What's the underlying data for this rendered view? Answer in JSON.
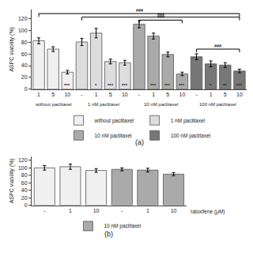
{
  "chart_data": [
    {
      "type": "bar",
      "title": "(a)",
      "ylabel": "ASPC viability (%)",
      "categories": [
        "1",
        "5",
        "10",
        "-",
        "1",
        "5",
        "10",
        "-",
        "1",
        "5",
        "10",
        "-",
        "1",
        "5",
        "10"
      ],
      "series": [
        {
          "name": "without paclitaxel",
          "color": "#f0f0f0",
          "values": [
            82,
            68,
            29,
            null,
            null,
            null,
            null,
            null,
            null,
            null,
            null,
            null,
            null,
            null,
            null
          ],
          "errors": [
            5,
            4,
            3,
            null,
            null,
            null,
            null,
            null,
            null,
            null,
            null,
            null,
            null,
            null,
            null
          ]
        },
        {
          "name": "1 nM paclitaxel",
          "color": "#dddddd",
          "values": [
            null,
            null,
            null,
            80,
            95,
            47,
            45,
            null,
            null,
            null,
            null,
            null,
            null,
            null,
            null
          ],
          "errors": [
            null,
            null,
            null,
            6,
            8,
            4,
            4,
            null,
            null,
            null,
            null,
            null,
            null,
            null,
            null
          ]
        },
        {
          "name": "10 nM paclitaxel",
          "color": "#aaaaaa",
          "values": [
            null,
            null,
            null,
            null,
            null,
            null,
            null,
            110,
            90,
            59,
            26,
            null,
            null,
            null,
            null
          ],
          "errors": [
            null,
            null,
            null,
            null,
            null,
            null,
            null,
            6,
            5,
            4,
            3,
            null,
            null,
            null,
            null
          ]
        },
        {
          "name": "100 nM paclitaxel",
          "color": "#777777",
          "values": [
            null,
            null,
            null,
            null,
            null,
            null,
            null,
            null,
            null,
            null,
            null,
            55,
            43,
            41,
            31
          ],
          "errors": [
            null,
            null,
            null,
            null,
            null,
            null,
            null,
            null,
            null,
            null,
            null,
            5,
            5,
            4,
            3
          ]
        }
      ],
      "group_labels": [
        "without paclitaxel",
        "1 nM paclitaxel",
        "10 nM paclitaxel",
        "100 nM paclitaxel"
      ],
      "annotations": [
        {
          "text": "***",
          "x": 2,
          "y": 1.5
        },
        {
          "text": "*",
          "x": 4,
          "y": 1.5
        },
        {
          "text": "***",
          "x": 5,
          "y": 1.5
        },
        {
          "text": "***",
          "x": 6,
          "y": 1.5
        },
        {
          "text": "***",
          "x": 8,
          "y": 1.5
        },
        {
          "text": "***",
          "x": 9,
          "y": 1.5
        },
        {
          "text": "***",
          "x": 10,
          "y": 1.5
        },
        {
          "text": "*",
          "x": 12,
          "y": 1.5
        },
        {
          "text": "**",
          "x": 13,
          "y": 1.5
        },
        {
          "text": "***",
          "x": 14,
          "y": 1.5
        },
        {
          "text": "###",
          "x": 0,
          "x_end": 14,
          "y": 128
        },
        {
          "text": "###",
          "x": 3,
          "x_end": 14,
          "y": 122
        },
        {
          "text": "###",
          "x": 7,
          "x_end": 10,
          "y": 117
        },
        {
          "text": "###",
          "x": 11,
          "x_end": 14,
          "y": 68
        }
      ],
      "ylim": [
        0,
        135
      ],
      "yticks": [
        0,
        20,
        40,
        60,
        80,
        100,
        120
      ],
      "grid": false,
      "legend": "bottom"
    },
    {
      "type": "bar",
      "title": "(b)",
      "ylabel": "ASPC viability (%)",
      "xlabel": "raloxifene (μM)",
      "categories": [
        "-",
        "1",
        "10",
        "-",
        "1",
        "10"
      ],
      "series": [
        {
          "color": "#f0f0f0",
          "values": [
            100,
            103,
            93,
            null,
            null,
            null
          ],
          "errors": [
            6,
            7,
            5,
            null,
            null,
            null
          ]
        },
        {
          "name": "10 nM paclitaxel",
          "color": "#aaaaaa",
          "values": [
            null,
            null,
            null,
            96,
            94,
            83
          ],
          "errors": [
            null,
            null,
            null,
            4,
            5,
            4
          ]
        }
      ],
      "ylim": [
        0,
        130
      ],
      "yticks": [
        0,
        20,
        40,
        60,
        80,
        100,
        120
      ],
      "grid": false,
      "legend": "bottom"
    }
  ]
}
